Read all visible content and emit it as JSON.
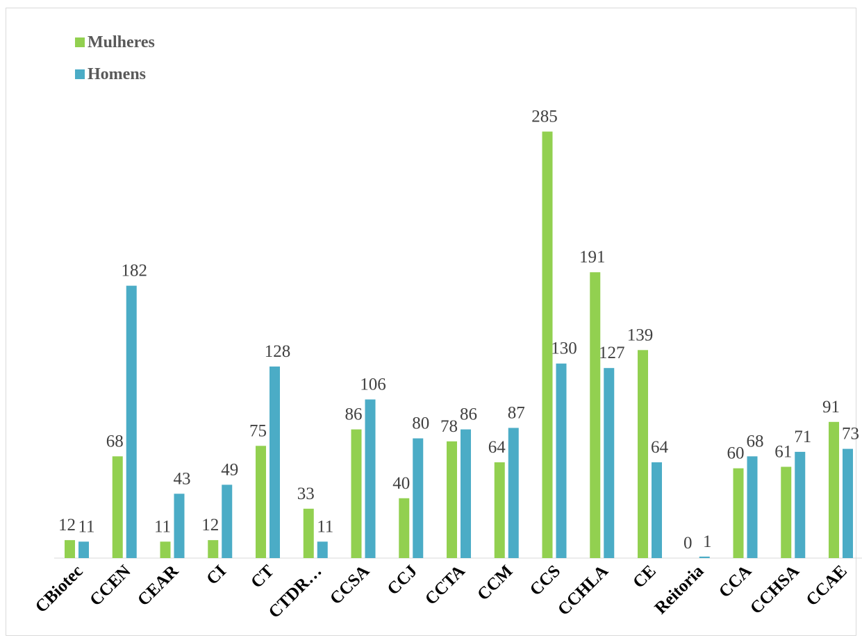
{
  "chart_data": {
    "type": "bar",
    "title": "",
    "xlabel": "",
    "ylabel": "",
    "ylim": [
      0,
      285
    ],
    "grid": false,
    "legend_placement": "top-left",
    "categories": [
      "CBiotec",
      "CCEN",
      "CEAR",
      "CI",
      "CT",
      "CTDR…",
      "CCSA",
      "CCJ",
      "CCTA",
      "CCM",
      "CCS",
      "CCHLA",
      "CE",
      "Reitoria",
      "CCA",
      "CCHSA",
      "CCAE"
    ],
    "series": [
      {
        "name": "Mulheres",
        "color": "#92d050",
        "values": [
          12,
          68,
          11,
          12,
          75,
          33,
          86,
          40,
          78,
          64,
          285,
          191,
          139,
          0,
          60,
          61,
          91
        ]
      },
      {
        "name": "Homens",
        "color": "#4bacc6",
        "values": [
          11,
          182,
          43,
          49,
          128,
          11,
          106,
          80,
          86,
          87,
          130,
          127,
          64,
          1,
          68,
          71,
          73
        ]
      }
    ]
  }
}
